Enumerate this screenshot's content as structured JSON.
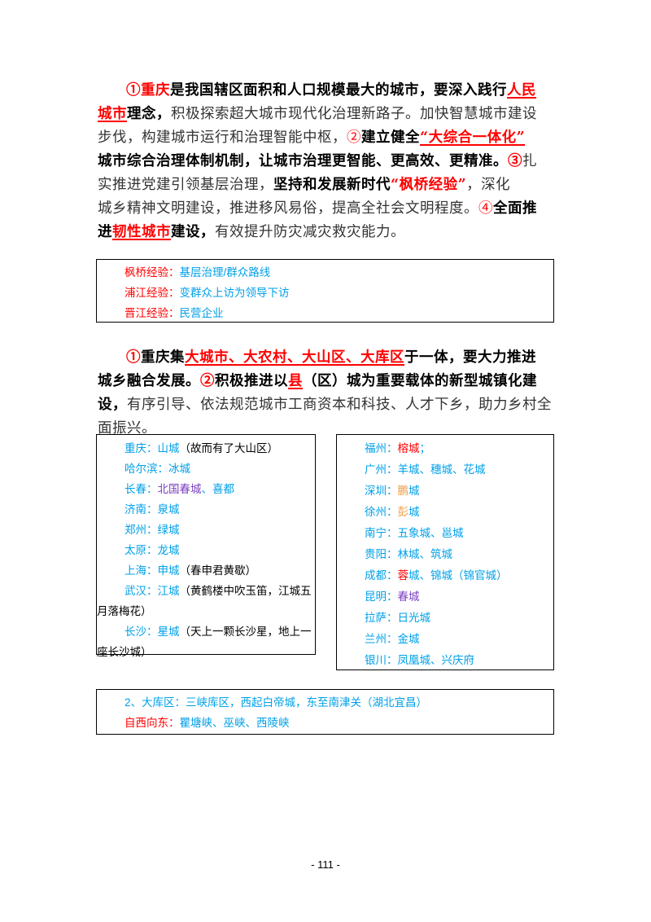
{
  "para1": {
    "l1_num": "①",
    "l1_city": "重庆",
    "l1_a": "是我国辖区面积和人口规模最大的城市，要深入践行",
    "l1_b": "人民",
    "l2_a": "城市",
    "l2_b": "理念，",
    "l2_c": "积极探索超大城市现代化治理新路子。加快智慧城市建设",
    "l3_a": "步伐，构建城市运行和治理智能中枢，",
    "l3_num": "②",
    "l3_b": "建立健全",
    "l3_c": "“大综合一体化”",
    "l4_a": "城市综合治理体制机制，让城市治理更智能、更高效、更精准。",
    "l4_num": "③",
    "l4_b": "扎",
    "l5_a": "实推进党建引领基层治理，",
    "l5_b": "坚持和发展新时代",
    "l5_c": "“枫桥经验”",
    "l5_d": "，深化",
    "l6_a": "城乡精神文明建设，推进移风易俗，提高全社会文明程度。",
    "l6_num": "④",
    "l6_b": "全面推",
    "l7_a": "进",
    "l7_b": "韧性城市",
    "l7_c": "建设，",
    "l7_d": "有效提升防灾减灾救灾能力。"
  },
  "box1": {
    "r1_k": "枫桥经验：",
    "r1_v": "基层治理/群众路线",
    "r2_k": "浦江经验：",
    "r2_v": "变群众上访为领导下访",
    "r3_k": "晋江经验：",
    "r3_v": "民营企业"
  },
  "para2": {
    "l1_num": "①",
    "l1_a": "重庆集",
    "l1_b": "大城市、大农村、大山区、大库区",
    "l1_c": "于一体，要大力推进",
    "l2_a": "城乡融合发展。",
    "l2_num": "②",
    "l2_b": "积极推进以",
    "l2_c": "县",
    "l2_d": "（区）城为重要载体的新型城镇化建",
    "l3_a": "设，",
    "l3_b": "有序引导、依法规范城市工商资本和科技、人才下乡，助力乡村全",
    "l4_a": "面振兴。"
  },
  "box2": {
    "r1_k": "重庆：山城",
    "r1_n": "（故而有了大山区）",
    "r2": "哈尔滨：冰城",
    "r3_k": "长春：",
    "r3_p": "北国春城",
    "r3_v": "、喜都",
    "r4": "济南：泉城",
    "r5": "郑州：绿城",
    "r6": "太原：龙城",
    "r7_k": "上海：申城",
    "r7_n": "（春申君黄歇）",
    "r8_k": "武汉：江城",
    "r8_n": "（黄鹤楼中吹玉笛，江城五",
    "r8_c": "月落梅花）",
    "r9_k": "长沙：星城",
    "r9_n": "（天上一颗长沙星，地上一",
    "r9_c": "座长沙城）"
  },
  "box3": {
    "r1_k": "福州：",
    "r1_v": "榕城",
    "r1_s": "；",
    "r2": "广州：羊城、穗城、花城",
    "r3_k": "深圳：",
    "r3_v": "鹏",
    "r3_s": "城",
    "r4_k": "徐州：",
    "r4_v": "彭",
    "r4_s": "城",
    "r5": "南宁：五象城、邕城",
    "r6": "贵阳：林城、筑城",
    "r7_k": "成都：",
    "r7_v": "蓉",
    "r7_s": "城、锦城（锦官城）",
    "r8_k": "昆明：",
    "r8_v": "春城",
    "r9": "拉萨：日光城",
    "r10": "兰州：金城",
    "r11": "银川：凤凰城、兴庆府"
  },
  "box4": {
    "r1": "2、大库区：三峡库区，西起白帝城，东至南津关（湖北宜昌）",
    "r2_k": "自西向东：",
    "r2_v": "瞿塘峡、巫峡、西陵峡"
  },
  "page_number": "- 111 -",
  "colors": {
    "red": "#ff0000",
    "blue": "#00a0e8",
    "purple": "#7a3fbf",
    "orange": "#f39a3c"
  }
}
